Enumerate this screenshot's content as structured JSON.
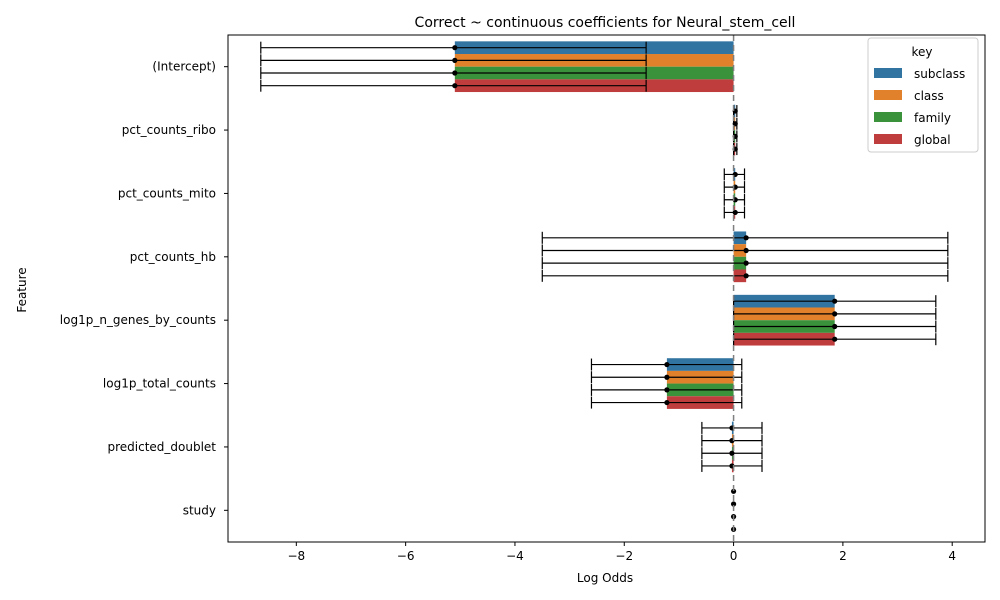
{
  "chart_data": {
    "type": "bar",
    "orientation": "horizontal",
    "title": "Correct ~ continuous coefficients for Neural_stem_cell",
    "xlabel": "Log Odds",
    "ylabel": "Feature",
    "xlim": [
      -9.25,
      4.6
    ],
    "xticks": [
      -8,
      -6,
      -4,
      -2,
      0,
      2,
      4
    ],
    "reference_line": 0,
    "categories": [
      "(Intercept)",
      "pct_counts_ribo",
      "pct_counts_mito",
      "pct_counts_hb",
      "log1p_n_genes_by_counts",
      "log1p_total_counts",
      "predicted_doublet",
      "study"
    ],
    "legend": {
      "title": "key",
      "placement": "top-right"
    },
    "series": [
      {
        "name": "subclass",
        "color": "#3274a1",
        "values": [
          -5.1,
          0.03,
          0.03,
          0.23,
          1.85,
          -1.22,
          -0.03,
          0.0
        ],
        "ci_low": [
          -8.65,
          0.0,
          -0.17,
          -3.5,
          0.0,
          -2.6,
          -0.58,
          0.0
        ],
        "ci_high": [
          -1.6,
          0.06,
          0.2,
          3.92,
          3.7,
          0.15,
          0.52,
          0.0
        ]
      },
      {
        "name": "class",
        "color": "#e1812c",
        "values": [
          -5.1,
          0.03,
          0.03,
          0.23,
          1.85,
          -1.22,
          -0.03,
          0.0
        ],
        "ci_low": [
          -8.65,
          0.0,
          -0.17,
          -3.5,
          0.0,
          -2.6,
          -0.58,
          0.0
        ],
        "ci_high": [
          -1.6,
          0.06,
          0.2,
          3.92,
          3.7,
          0.15,
          0.52,
          0.0
        ]
      },
      {
        "name": "family",
        "color": "#3a923a",
        "values": [
          -5.1,
          0.03,
          0.03,
          0.23,
          1.85,
          -1.22,
          -0.03,
          0.0
        ],
        "ci_low": [
          -8.65,
          0.0,
          -0.17,
          -3.5,
          0.0,
          -2.6,
          -0.58,
          0.0
        ],
        "ci_high": [
          -1.6,
          0.06,
          0.2,
          3.92,
          3.7,
          0.15,
          0.52,
          0.0
        ]
      },
      {
        "name": "global",
        "color": "#c03d3e",
        "values": [
          -5.1,
          0.03,
          0.03,
          0.23,
          1.85,
          -1.22,
          -0.03,
          0.0
        ],
        "ci_low": [
          -8.65,
          0.0,
          -0.17,
          -3.5,
          0.0,
          -2.6,
          -0.58,
          0.0
        ],
        "ci_high": [
          -1.6,
          0.06,
          0.2,
          3.92,
          3.7,
          0.15,
          0.52,
          0.0
        ]
      }
    ]
  }
}
